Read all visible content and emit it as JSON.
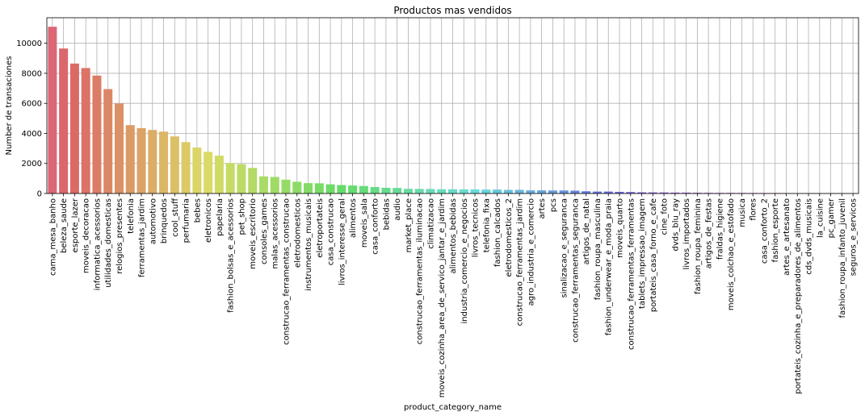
{
  "chart_data": {
    "type": "bar",
    "title": "Productos mas vendidos",
    "xlabel": "product_category_name",
    "ylabel": "Number de transaciones",
    "ylim": [
      0,
      11700
    ],
    "yticks": [
      0,
      2000,
      4000,
      6000,
      8000,
      10000
    ],
    "grid": true,
    "categories": [
      "cama_mesa_banho",
      "beleza_saude",
      "esporte_lazer",
      "moveis_decoracao",
      "informatica_acessorios",
      "utilidades_domesticas",
      "relogios_presentes",
      "telefonia",
      "ferramentas_jardim",
      "automotivo",
      "brinquedos",
      "cool_stuff",
      "perfumaria",
      "bebes",
      "eletronicos",
      "papelaria",
      "fashion_bolsas_e_acessorios",
      "pet_shop",
      "moveis_escritorio",
      "consoles_games",
      "malas_acessorios",
      "construcao_ferramentas_construcao",
      "eletrodomesticos",
      "instrumentos_musicais",
      "eletroportateis",
      "casa_construcao",
      "livros_interesse_geral",
      "alimentos",
      "moveis_sala",
      "casa_conforto",
      "bebidas",
      "audio",
      "market_place",
      "construcao_ferramentas_iluminacao",
      "climatizacao",
      "moveis_cozinha_area_de_servico_jantar_e_jardim",
      "alimentos_bebidas",
      "industria_comercio_e_negocios",
      "livros_tecnicos",
      "telefonia_fixa",
      "fashion_calcados",
      "eletrodomesticos_2",
      "construcao_ferramentas_jardim",
      "agro_industria_e_comercio",
      "artes",
      "pcs",
      "sinalizacao_e_seguranca",
      "construcao_ferramentas_seguranca",
      "artigos_de_natal",
      "fashion_roupa_masculina",
      "fashion_underwear_e_moda_praia",
      "moveis_quarto",
      "construcao_ferramentas_ferramentas",
      "tablets_impressao_imagem",
      "portateis_casa_forno_e_cafe",
      "cine_foto",
      "dvds_blu_ray",
      "livros_importados",
      "fashion_roupa_feminina",
      "artigos_de_festas",
      "fraldas_higiene",
      "moveis_colchao_e_estofado",
      "musica",
      "flores",
      "casa_conforto_2",
      "fashion_esporte",
      "artes_e_artesanato",
      "portateis_cozinha_e_preparadores_de_alimentos",
      "cds_dvds_musicais",
      "la_cuisine",
      "pc_gamer",
      "fashion_roupa_infanto_juvenil",
      "seguros_e_servicos"
    ],
    "values": [
      11100,
      9650,
      8650,
      8350,
      7850,
      6950,
      5990,
      4550,
      4350,
      4230,
      4120,
      3800,
      3420,
      3060,
      2770,
      2520,
      2030,
      1950,
      1700,
      1140,
      1100,
      920,
      780,
      690,
      680,
      610,
      560,
      530,
      500,
      430,
      380,
      370,
      310,
      300,
      300,
      280,
      280,
      270,
      270,
      260,
      260,
      240,
      240,
      210,
      210,
      200,
      200,
      190,
      150,
      130,
      130,
      110,
      100,
      80,
      75,
      70,
      60,
      60,
      50,
      45,
      40,
      40,
      38,
      33,
      30,
      30,
      25,
      15,
      14,
      13,
      9,
      8,
      2
    ]
  }
}
